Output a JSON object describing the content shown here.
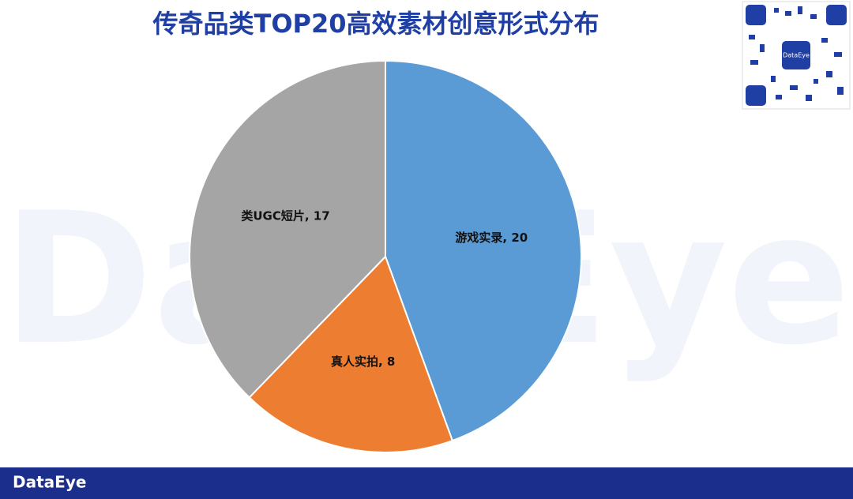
{
  "chart_data": {
    "type": "pie",
    "title": "传奇品类TOP20高效素材创意形式分布",
    "categories": [
      "游戏实录",
      "真人实拍",
      "类UGC短片"
    ],
    "values": [
      20,
      8,
      17
    ],
    "value_labels": [
      "游戏实录, 20",
      "真人实拍, 8",
      "类UGC短片, 17"
    ],
    "colors": [
      "#5b9bd5",
      "#ed7d31",
      "#a5a5a5"
    ]
  },
  "watermark": "DataEye",
  "qr_label": "DataEye",
  "footer_logo": "DataEye"
}
